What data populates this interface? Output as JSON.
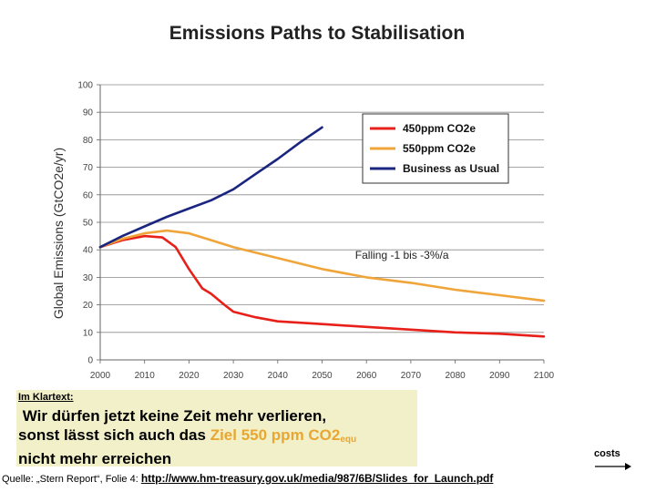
{
  "chart_data": {
    "type": "line",
    "title": "Emissions Paths to Stabilisation",
    "ylabel": "Global Emissions (GtCO2e/yr)",
    "xlabel": "",
    "xlim": [
      2000,
      2100
    ],
    "ylim": [
      0,
      100
    ],
    "x_ticks": [
      "2000",
      "2010",
      "2020",
      "2030",
      "2040",
      "2050",
      "2060",
      "2070",
      "2080",
      "2090",
      "2100"
    ],
    "y_ticks": [
      "0",
      "10",
      "20",
      "30",
      "40",
      "50",
      "60",
      "70",
      "80",
      "90",
      "100"
    ],
    "grid": "horizontal",
    "legend_position": "top-right",
    "series": [
      {
        "name": "450ppm CO2e",
        "color": "#e8201a",
        "points": [
          [
            2000,
            41
          ],
          [
            2005,
            43.5
          ],
          [
            2010,
            45
          ],
          [
            2014,
            44.5
          ],
          [
            2017,
            41
          ],
          [
            2020,
            33
          ],
          [
            2023,
            26
          ],
          [
            2025,
            24
          ],
          [
            2028,
            20
          ],
          [
            2030,
            17.5
          ],
          [
            2035,
            15.5
          ],
          [
            2040,
            14
          ],
          [
            2045,
            13.5
          ],
          [
            2050,
            13
          ],
          [
            2060,
            12
          ],
          [
            2070,
            11
          ],
          [
            2080,
            10
          ],
          [
            2090,
            9.5
          ],
          [
            2100,
            8.5
          ]
        ]
      },
      {
        "name": "550ppm CO2e",
        "color": "#f0a53a",
        "points": [
          [
            2000,
            41
          ],
          [
            2005,
            44
          ],
          [
            2010,
            46
          ],
          [
            2015,
            47
          ],
          [
            2020,
            46
          ],
          [
            2025,
            43.5
          ],
          [
            2030,
            41
          ],
          [
            2040,
            37
          ],
          [
            2050,
            33
          ],
          [
            2060,
            30
          ],
          [
            2070,
            28
          ],
          [
            2080,
            25.5
          ],
          [
            2090,
            23.5
          ],
          [
            2100,
            21.5
          ]
        ]
      },
      {
        "name": "Business as Usual",
        "color": "#1a2580",
        "points": [
          [
            2000,
            41
          ],
          [
            2005,
            45
          ],
          [
            2010,
            48.5
          ],
          [
            2015,
            52
          ],
          [
            2020,
            55
          ],
          [
            2025,
            58
          ],
          [
            2030,
            62
          ],
          [
            2035,
            67.5
          ],
          [
            2040,
            73
          ],
          [
            2045,
            79
          ],
          [
            2050,
            84.5
          ]
        ]
      }
    ],
    "annotations": [
      {
        "text": "Falling -1 bis -3%/a",
        "x": 2068,
        "y": 38
      }
    ]
  },
  "caption": {
    "label": "Im Klartext:",
    "line1": "Wir dürfen jetzt keine Zeit mehr verlieren,",
    "line2_pre": "sonst lässt sich auch das ",
    "line2_highlight": "Ziel 550 ppm CO2",
    "line2_sub": "equ",
    "line3": "nicht mehr erreichen"
  },
  "source": {
    "prefix": "Quelle: „Stern Report“, Folie 4: ",
    "link": "http://www.hm-treasury.gov.uk/media/987/6B/Slides_for_Launch.pdf"
  },
  "costs_label": "costs"
}
